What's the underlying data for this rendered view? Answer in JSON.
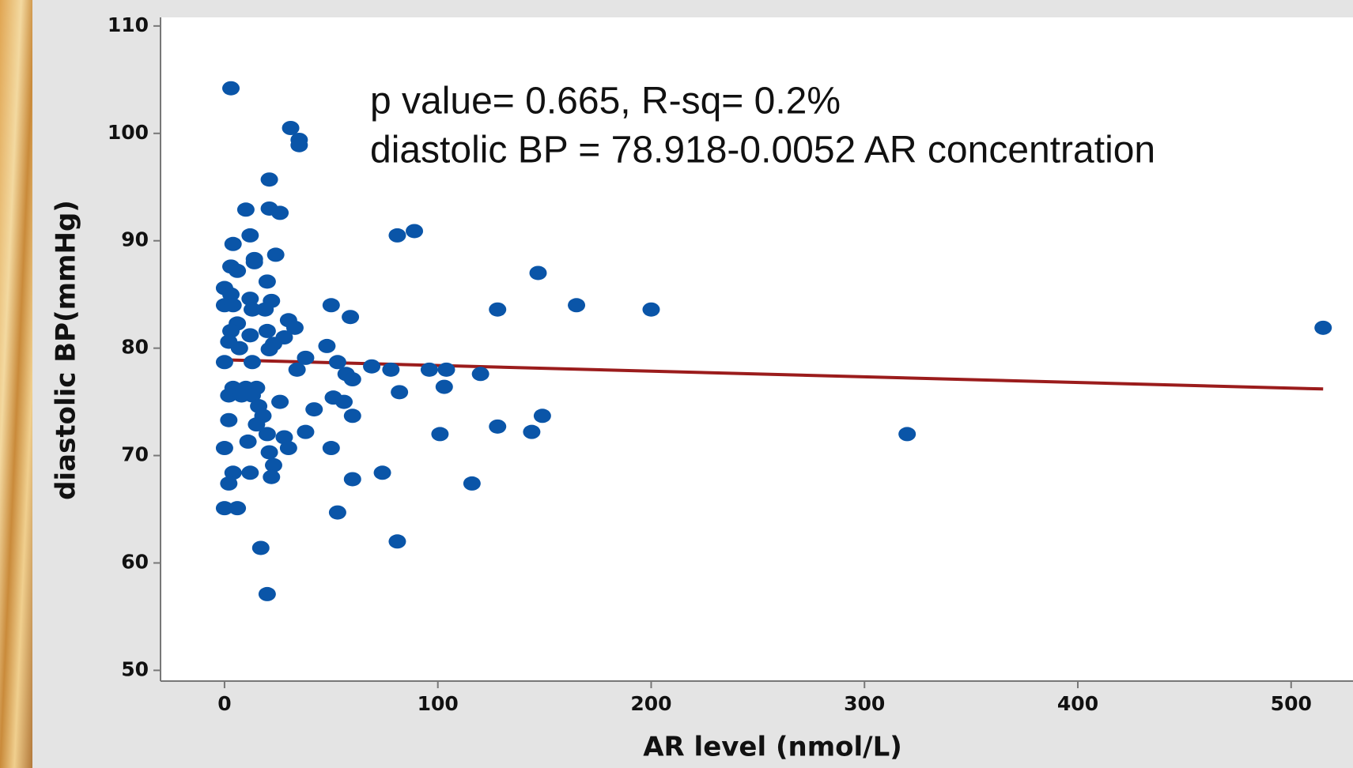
{
  "chart_data": {
    "type": "scatter",
    "x_label": "AR level (nmol/L)",
    "y_label": "diastolic BP(mmHg)",
    "annotations": [
      "p value= 0.665, R-sq= 0.2%",
      "diastolic BP = 78.918-0.0052 AR concentration"
    ],
    "xlim": [
      -30,
      529
    ],
    "ylim": [
      49,
      110.8
    ],
    "xticks": [
      0,
      100,
      200,
      300,
      400,
      500
    ],
    "yticks": [
      50,
      60,
      70,
      80,
      90,
      100,
      110
    ],
    "series": [
      {
        "color": "#0a55a8",
        "x": [
          3,
          31,
          35,
          35,
          21,
          10,
          21,
          26,
          12,
          81,
          89,
          4,
          24,
          14,
          14,
          3,
          6,
          147,
          20,
          0,
          3,
          12,
          22,
          0,
          4,
          50,
          165,
          13,
          19,
          128,
          200,
          59,
          6,
          30,
          33,
          3,
          20,
          515,
          12,
          28,
          2,
          23,
          48,
          7,
          21,
          38,
          13,
          0,
          53,
          69,
          78,
          34,
          96,
          104,
          120,
          57,
          60,
          4,
          10,
          15,
          103,
          82,
          2,
          8,
          13,
          51,
          56,
          26,
          16,
          42,
          18,
          60,
          149,
          2,
          15,
          128,
          38,
          144,
          101,
          320,
          20,
          28,
          11,
          30,
          0,
          50,
          21,
          23,
          4,
          12,
          74,
          22,
          60,
          2,
          116,
          0,
          6,
          53,
          17,
          81,
          20
        ],
        "values": [
          104.2,
          100.5,
          99.4,
          98.9,
          95.7,
          92.9,
          93.0,
          92.6,
          90.5,
          90.5,
          90.9,
          89.7,
          88.7,
          88.3,
          88.0,
          87.6,
          87.2,
          87.0,
          86.2,
          85.6,
          85.0,
          84.6,
          84.4,
          84.0,
          84.0,
          84.0,
          84.0,
          83.6,
          83.6,
          83.6,
          83.6,
          82.9,
          82.3,
          82.6,
          81.9,
          81.6,
          81.6,
          81.9,
          81.2,
          81.0,
          80.6,
          80.4,
          80.2,
          80.0,
          79.9,
          79.1,
          78.7,
          78.7,
          78.7,
          78.3,
          78.0,
          78.0,
          78.0,
          78.0,
          77.6,
          77.6,
          77.1,
          76.3,
          76.3,
          76.3,
          76.4,
          75.9,
          75.6,
          75.6,
          75.6,
          75.4,
          75.0,
          75.0,
          74.6,
          74.3,
          73.7,
          73.7,
          73.7,
          73.3,
          72.9,
          72.7,
          72.2,
          72.2,
          72.0,
          72.0,
          72.0,
          71.7,
          71.3,
          70.7,
          70.7,
          70.7,
          70.3,
          69.1,
          68.4,
          68.4,
          68.4,
          68.0,
          67.8,
          67.4,
          67.4,
          65.1,
          65.1,
          64.7,
          61.4,
          62.0,
          57.1
        ]
      }
    ],
    "fit_line": {
      "color": "#9b1c1c",
      "x": [
        3,
        515
      ],
      "values": [
        78.9,
        76.2
      ]
    }
  }
}
